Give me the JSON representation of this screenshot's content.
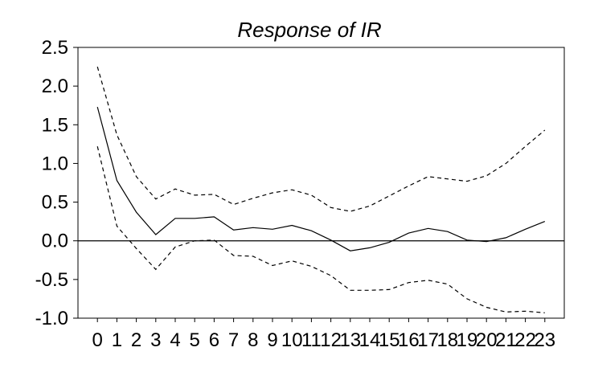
{
  "chart_data": {
    "type": "line",
    "title": "Response of IR",
    "xlabel": "",
    "ylabel": "",
    "x": [
      0,
      1,
      2,
      3,
      4,
      5,
      6,
      7,
      8,
      9,
      10,
      11,
      12,
      13,
      14,
      15,
      16,
      17,
      18,
      19,
      20,
      21,
      22,
      23
    ],
    "xlim": [
      -1,
      24
    ],
    "ylim": [
      -1.0,
      2.5
    ],
    "yticks": [
      2.5,
      2.0,
      1.5,
      1.0,
      0.5,
      0.0,
      -0.5,
      -1.0
    ],
    "ytick_labels": [
      "2.5",
      "2.0",
      "1.5",
      "1.0",
      "0.5",
      "0.0",
      "-0.5",
      "-1.0"
    ],
    "xtick_labels": [
      "0",
      "1",
      "2",
      "3",
      "4",
      "5",
      "6",
      "7",
      "8",
      "9",
      "10",
      "11",
      "12",
      "13",
      "14",
      "15",
      "16",
      "17",
      "18",
      "19",
      "20",
      "21",
      "22",
      "23"
    ],
    "grid": false,
    "zero_line": true,
    "series": [
      {
        "style": "solid",
        "values": [
          1.73,
          0.78,
          0.37,
          0.08,
          0.29,
          0.29,
          0.31,
          0.14,
          0.17,
          0.15,
          0.2,
          0.13,
          0.01,
          -0.13,
          -0.09,
          -0.02,
          0.1,
          0.16,
          0.12,
          0.01,
          -0.01,
          0.04,
          0.15,
          0.25
        ]
      },
      {
        "style": "dashed",
        "values": [
          2.25,
          1.37,
          0.83,
          0.54,
          0.67,
          0.59,
          0.6,
          0.47,
          0.55,
          0.62,
          0.66,
          0.59,
          0.43,
          0.38,
          0.45,
          0.58,
          0.71,
          0.83,
          0.8,
          0.77,
          0.84,
          1.0,
          1.22,
          1.43
        ]
      },
      {
        "style": "dashed",
        "values": [
          1.22,
          0.19,
          -0.1,
          -0.37,
          -0.08,
          0.0,
          0.01,
          -0.19,
          -0.2,
          -0.32,
          -0.26,
          -0.33,
          -0.45,
          -0.64,
          -0.64,
          -0.63,
          -0.54,
          -0.51,
          -0.56,
          -0.75,
          -0.86,
          -0.92,
          -0.91,
          -0.93
        ]
      }
    ]
  }
}
